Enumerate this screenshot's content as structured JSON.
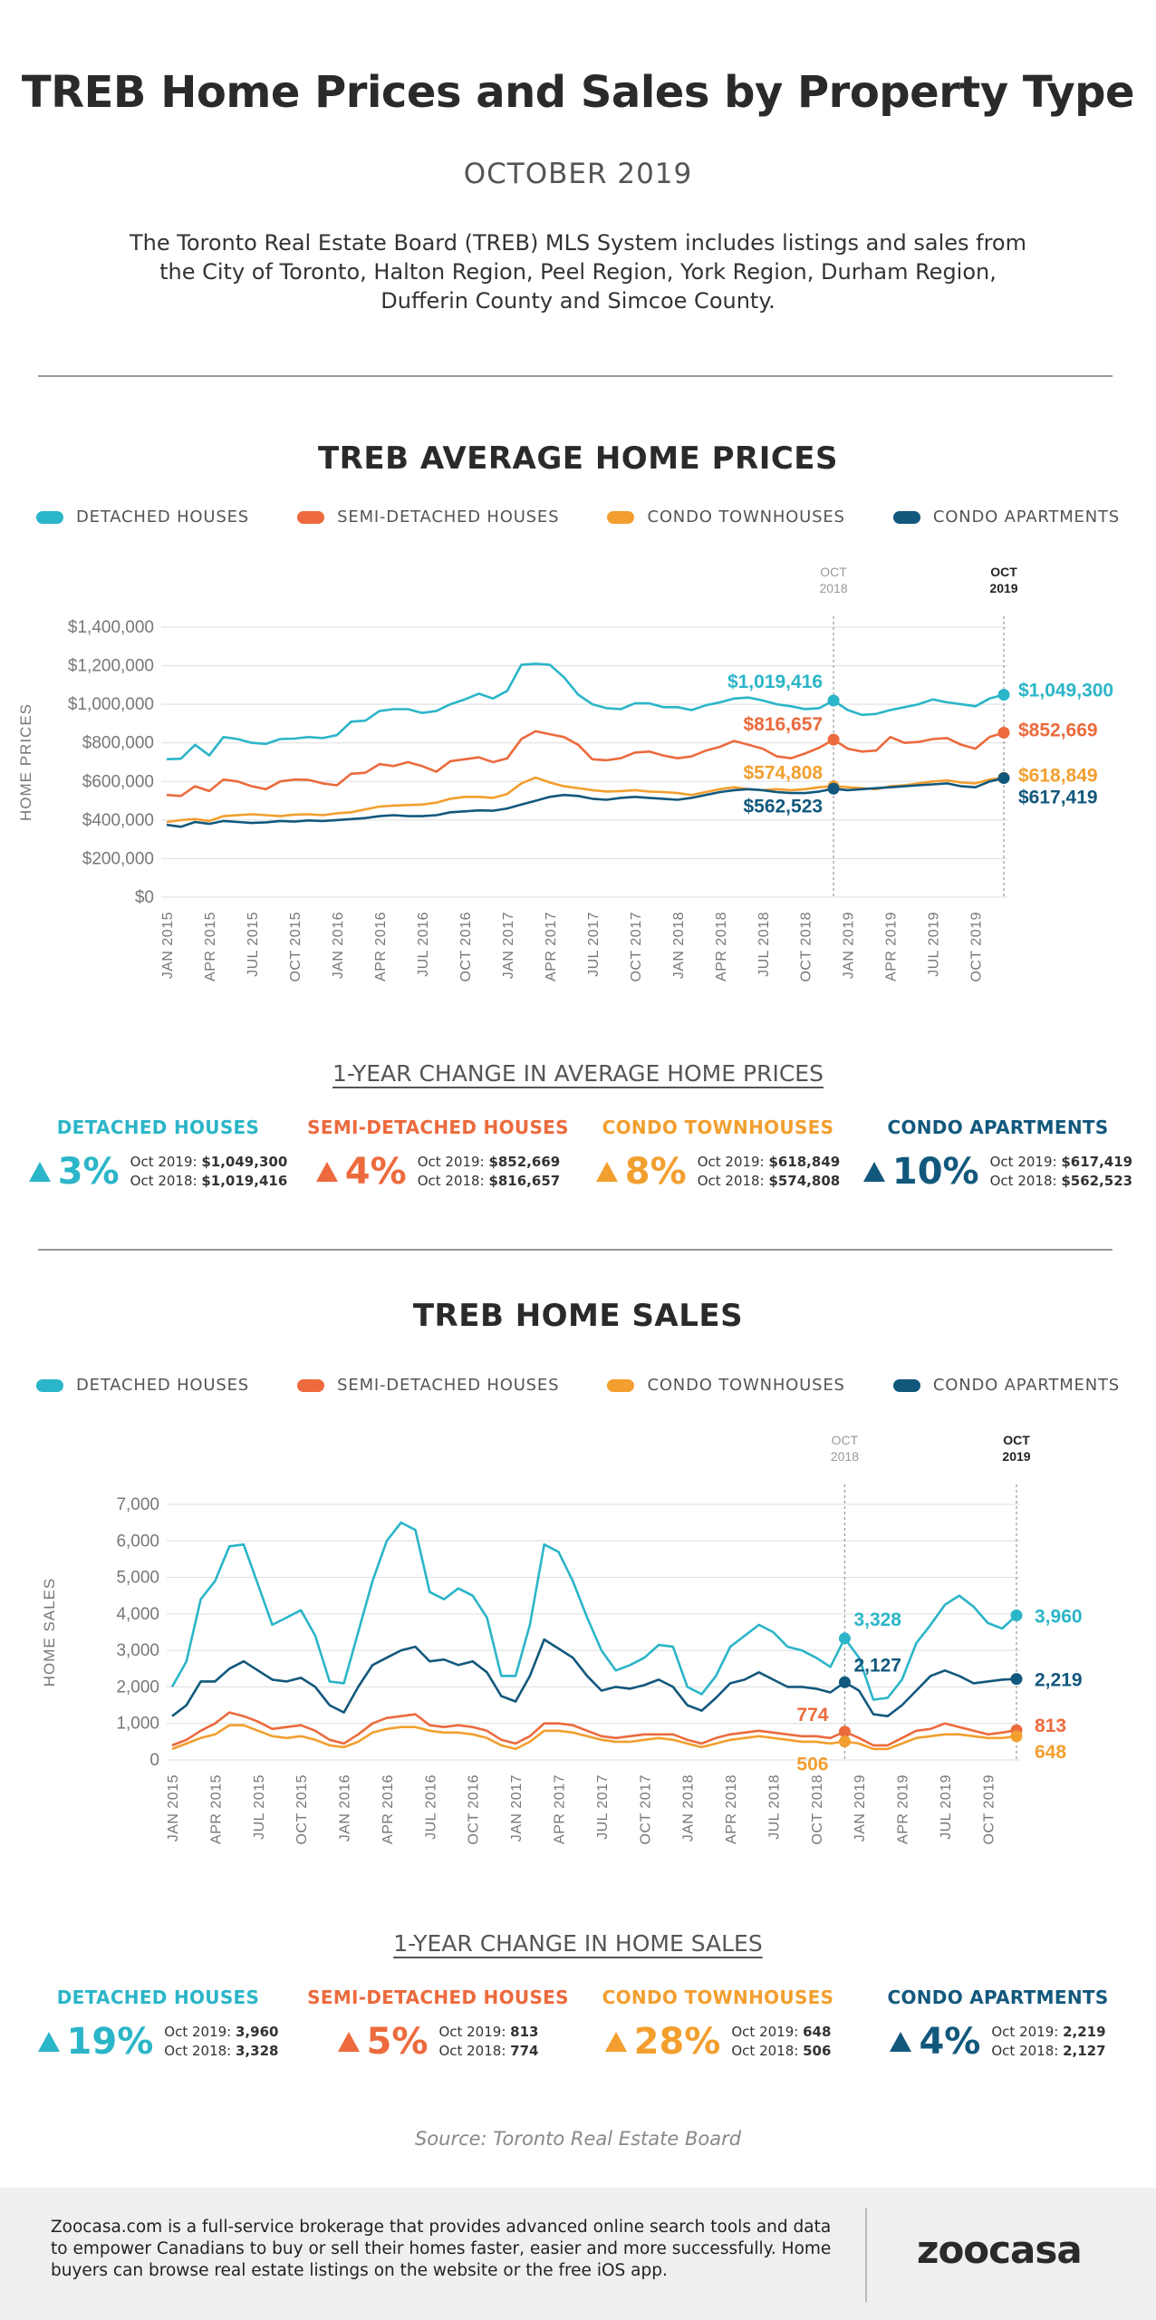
{
  "header": {
    "title": "TREB Home Prices and Sales by Property Type",
    "subtitle": "OCTOBER 2019",
    "intro": "The Toronto Real Estate Board (TREB) MLS System includes listings and sales from the City of Toronto, Halton Region, Peel Region, York Region, Durham Region, Dufferin County and Simcoe County."
  },
  "colors": {
    "detached": "#2bb5c8",
    "semi": "#ec6a3d",
    "townhouse": "#f29f2f",
    "condo": "#12587d"
  },
  "legend": [
    "DETACHED HOUSES",
    "SEMI-DETACHED HOUSES",
    "CONDO TOWNHOUSES",
    "CONDO APARTMENTS"
  ],
  "prices": {
    "title": "TREB AVERAGE HOME PRICES",
    "ylabel": "HOME PRICES",
    "marker_oct2018": [
      "OCT",
      "2018"
    ],
    "marker_oct2019": [
      "OCT",
      "2019"
    ],
    "change_title": "1-YEAR CHANGE IN AVERAGE HOME PRICES",
    "cards": [
      {
        "name": "DETACHED HOUSES",
        "pct": "3%",
        "line1_label": "Oct 2019:",
        "line1_value": "$1,049,300",
        "line2_label": "Oct 2018:",
        "line2_value": "$1,019,416"
      },
      {
        "name": "SEMI-DETACHED HOUSES",
        "pct": "4%",
        "line1_label": "Oct 2019:",
        "line1_value": "$852,669",
        "line2_label": "Oct 2018:",
        "line2_value": "$816,657"
      },
      {
        "name": "CONDO TOWNHOUSES",
        "pct": "8%",
        "line1_label": "Oct 2019:",
        "line1_value": "$618,849",
        "line2_label": "Oct 2018:",
        "line2_value": "$574,808"
      },
      {
        "name": "CONDO APARTMENTS",
        "pct": "10%",
        "line1_label": "Oct 2019:",
        "line1_value": "$617,419",
        "line2_label": "Oct 2018:",
        "line2_value": "$562,523"
      }
    ]
  },
  "sales": {
    "title": "TREB HOME SALES",
    "ylabel": "HOME SALES",
    "marker_oct2018": [
      "OCT",
      "2018"
    ],
    "marker_oct2019": [
      "OCT",
      "2019"
    ],
    "change_title": "1-YEAR CHANGE IN HOME SALES",
    "cards": [
      {
        "name": "DETACHED HOUSES",
        "pct": "19%",
        "line1_label": "Oct 2019:",
        "line1_value": "3,960",
        "line2_label": "Oct 2018:",
        "line2_value": "3,328"
      },
      {
        "name": "SEMI-DETACHED HOUSES",
        "pct": "5%",
        "line1_label": "Oct 2019:",
        "line1_value": "813",
        "line2_label": "Oct 2018:",
        "line2_value": "774"
      },
      {
        "name": "CONDO TOWNHOUSES",
        "pct": "28%",
        "line1_label": "Oct 2019:",
        "line1_value": "648",
        "line2_label": "Oct 2018:",
        "line2_value": "506"
      },
      {
        "name": "CONDO APARTMENTS",
        "pct": "4%",
        "line1_label": "Oct 2019:",
        "line1_value": "2,219",
        "line2_label": "Oct 2018:",
        "line2_value": "2,127"
      }
    ]
  },
  "source": "Source: Toronto Real Estate Board",
  "footer": {
    "text": "Zoocasa.com is a full-service brokerage that provides advanced online search tools and data to empower Canadians to buy or sell their homes faster, easier and more successfully. Home buyers can browse real estate listings on the website or the free iOS app.",
    "logo": "zoocasa"
  },
  "chart_data": [
    {
      "type": "line",
      "title": "TREB AVERAGE HOME PRICES",
      "ylabel": "HOME PRICES",
      "ylim": [
        0,
        1400000
      ],
      "yticks": [
        "$0",
        "$200,000",
        "$400,000",
        "$600,000",
        "$800,000",
        "$1,000,000",
        "$1,200,000",
        "$1,400,000"
      ],
      "x_start": "JAN 2015",
      "x_end": "OCT 2019",
      "x_tick_labels": [
        "JAN 2015",
        "APR 2015",
        "JUL 2015",
        "OCT 2015",
        "JAN 2016",
        "APR 2016",
        "JUL 2016",
        "OCT 2016",
        "JAN 2017",
        "APR 2017",
        "JUL 2017",
        "OCT 2017",
        "JAN 2018",
        "APR 2018",
        "JUL 2018",
        "OCT 2018",
        "JAN 2019",
        "APR 2019",
        "JUL 2019",
        "OCT 2019"
      ],
      "grid": true,
      "legend": "top",
      "series": [
        {
          "name": "DETACHED HOUSES",
          "color": "#2bb5c8",
          "values": [
            715000,
            718000,
            790000,
            735000,
            830000,
            820000,
            800000,
            795000,
            820000,
            822000,
            830000,
            825000,
            840000,
            910000,
            915000,
            965000,
            975000,
            975000,
            955000,
            965000,
            1000000,
            1025000,
            1055000,
            1030000,
            1070000,
            1205000,
            1210000,
            1205000,
            1140000,
            1050000,
            1000000,
            980000,
            975000,
            1005000,
            1005000,
            985000,
            985000,
            970000,
            995000,
            1010000,
            1030000,
            1035000,
            1020000,
            1000000,
            990000,
            975000,
            980000,
            1019416,
            970000,
            945000,
            950000,
            970000,
            985000,
            1000000,
            1025000,
            1010000,
            1000000,
            990000,
            1030000,
            1049300
          ],
          "annotation_oct2018": "$1,019,416",
          "annotation_oct2019": "$1,049,300"
        },
        {
          "name": "SEMI-DETACHED HOUSES",
          "color": "#ec6a3d",
          "values": [
            530000,
            525000,
            575000,
            550000,
            610000,
            600000,
            575000,
            560000,
            600000,
            610000,
            608000,
            590000,
            580000,
            640000,
            645000,
            690000,
            680000,
            700000,
            680000,
            650000,
            705000,
            715000,
            725000,
            700000,
            720000,
            820000,
            860000,
            845000,
            830000,
            790000,
            715000,
            710000,
            720000,
            750000,
            755000,
            735000,
            720000,
            730000,
            760000,
            780000,
            810000,
            790000,
            770000,
            730000,
            720000,
            745000,
            775000,
            816657,
            770000,
            755000,
            760000,
            830000,
            800000,
            805000,
            820000,
            825000,
            790000,
            770000,
            830000,
            852669
          ],
          "annotation_oct2018": "$816,657",
          "annotation_oct2019": "$852,669"
        },
        {
          "name": "CONDO TOWNHOUSES",
          "color": "#f29f2f",
          "values": [
            390000,
            400000,
            405000,
            395000,
            420000,
            425000,
            430000,
            425000,
            420000,
            428000,
            430000,
            425000,
            435000,
            440000,
            455000,
            470000,
            475000,
            478000,
            480000,
            490000,
            510000,
            520000,
            520000,
            515000,
            535000,
            590000,
            620000,
            595000,
            575000,
            565000,
            555000,
            548000,
            550000,
            555000,
            548000,
            545000,
            540000,
            530000,
            545000,
            560000,
            570000,
            560000,
            555000,
            560000,
            555000,
            560000,
            570000,
            574808,
            570000,
            565000,
            560000,
            575000,
            580000,
            590000,
            600000,
            605000,
            595000,
            590000,
            610000,
            618849
          ],
          "annotation_oct2018": "$574,808",
          "annotation_oct2019": "$618,849"
        },
        {
          "name": "CONDO APARTMENTS",
          "color": "#12587d",
          "values": [
            375000,
            365000,
            390000,
            380000,
            395000,
            390000,
            385000,
            388000,
            395000,
            392000,
            398000,
            395000,
            400000,
            405000,
            410000,
            420000,
            425000,
            420000,
            420000,
            425000,
            440000,
            445000,
            450000,
            448000,
            460000,
            480000,
            500000,
            520000,
            530000,
            525000,
            510000,
            505000,
            515000,
            520000,
            515000,
            510000,
            505000,
            515000,
            530000,
            545000,
            555000,
            560000,
            555000,
            545000,
            540000,
            540000,
            548000,
            562523,
            555000,
            560000,
            565000,
            570000,
            575000,
            580000,
            585000,
            590000,
            575000,
            570000,
            600000,
            617419
          ],
          "annotation_oct2018": "$562,523",
          "annotation_oct2019": "$617,419"
        }
      ]
    },
    {
      "type": "line",
      "title": "TREB HOME SALES",
      "ylabel": "HOME SALES",
      "ylim": [
        0,
        7000
      ],
      "yticks": [
        "0",
        "1,000",
        "2,000",
        "3,000",
        "4,000",
        "5,000",
        "6,000",
        "7,000"
      ],
      "x_start": "JAN 2015",
      "x_end": "OCT 2019",
      "x_tick_labels": [
        "JAN 2015",
        "APR 2015",
        "JUL 2015",
        "OCT 2015",
        "JAN 2016",
        "APR 2016",
        "JUL 2016",
        "OCT 2016",
        "JAN 2017",
        "APR 2017",
        "JUL 2017",
        "OCT 2017",
        "JAN 2018",
        "APR 2018",
        "JUL 2018",
        "OCT 2018",
        "JAN 2019",
        "APR 2019",
        "JUL 2019",
        "OCT 2019"
      ],
      "grid": true,
      "legend": "top",
      "series": [
        {
          "name": "DETACHED HOUSES",
          "color": "#2bb5c8",
          "values": [
            2000,
            2700,
            4400,
            4900,
            5850,
            5900,
            4800,
            3700,
            3900,
            4100,
            3400,
            2150,
            2100,
            3500,
            4900,
            6000,
            6500,
            6300,
            4600,
            4400,
            4700,
            4500,
            3900,
            2300,
            2300,
            3700,
            5900,
            5700,
            4900,
            3900,
            3000,
            2450,
            2600,
            2800,
            3150,
            3100,
            2000,
            1800,
            2300,
            3100,
            3400,
            3700,
            3500,
            3100,
            3000,
            2800,
            2550,
            3328,
            2800,
            1650,
            1700,
            2200,
            3200,
            3700,
            4250,
            4500,
            4200,
            3750,
            3600,
            3960
          ],
          "annotation_oct2018": "3,328",
          "annotation_oct2019": "3,960"
        },
        {
          "name": "SEMI-DETACHED HOUSES",
          "color": "#ec6a3d",
          "values": [
            400,
            550,
            800,
            1000,
            1300,
            1200,
            1050,
            850,
            900,
            950,
            800,
            550,
            450,
            700,
            1000,
            1150,
            1200,
            1250,
            950,
            900,
            950,
            900,
            800,
            550,
            450,
            650,
            1000,
            1000,
            950,
            800,
            650,
            600,
            650,
            700,
            700,
            700,
            550,
            450,
            600,
            700,
            750,
            800,
            750,
            700,
            650,
            650,
            600,
            774,
            600,
            400,
            400,
            600,
            800,
            850,
            1000,
            900,
            800,
            700,
            750,
            813
          ],
          "annotation_oct2018": "774",
          "annotation_oct2019": "813"
        },
        {
          "name": "CONDO TOWNHOUSES",
          "color": "#f29f2f",
          "values": [
            300,
            450,
            600,
            700,
            950,
            950,
            800,
            650,
            600,
            650,
            550,
            400,
            350,
            500,
            750,
            850,
            900,
            900,
            800,
            750,
            750,
            700,
            600,
            400,
            300,
            500,
            800,
            800,
            750,
            650,
            550,
            500,
            500,
            550,
            600,
            550,
            450,
            350,
            450,
            550,
            600,
            650,
            600,
            550,
            500,
            500,
            450,
            506,
            450,
            300,
            300,
            450,
            600,
            650,
            700,
            700,
            650,
            600,
            600,
            648
          ],
          "annotation_oct2018": "506",
          "annotation_oct2019": "648"
        },
        {
          "name": "CONDO APARTMENTS",
          "color": "#12587d",
          "values": [
            1200,
            1500,
            2150,
            2150,
            2500,
            2700,
            2450,
            2200,
            2150,
            2250,
            2000,
            1500,
            1300,
            2000,
            2600,
            2800,
            3000,
            3100,
            2700,
            2750,
            2600,
            2700,
            2400,
            1750,
            1600,
            2300,
            3300,
            3050,
            2800,
            2300,
            1900,
            2000,
            1950,
            2050,
            2200,
            2000,
            1500,
            1350,
            1700,
            2100,
            2200,
            2400,
            2200,
            2000,
            2000,
            1950,
            1850,
            2127,
            1900,
            1250,
            1200,
            1500,
            1900,
            2300,
            2450,
            2300,
            2100,
            2150,
            2200,
            2219
          ],
          "annotation_oct2018": "2,127",
          "annotation_oct2019": "2,219"
        }
      ]
    }
  ]
}
